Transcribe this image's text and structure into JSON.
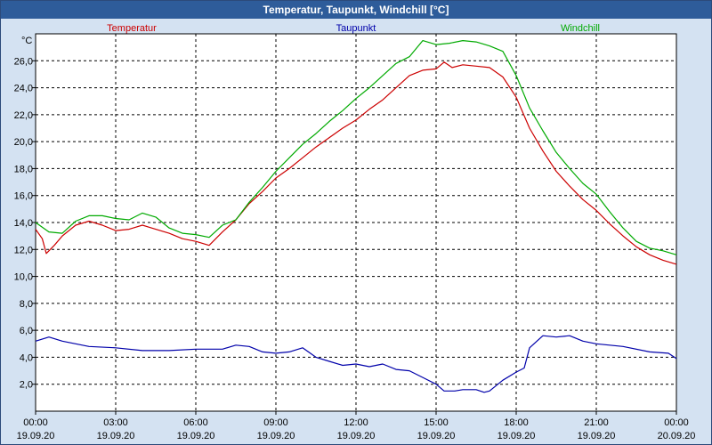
{
  "window": {
    "title": "Temperatur, Taupunkt, Windchill [°C]"
  },
  "chart_data": {
    "type": "line",
    "title": "Temperatur, Taupunkt, Windchill [°C]",
    "ylabel": "°C",
    "xlabel": "",
    "ylim": [
      0.0,
      28.0
    ],
    "xlim": [
      0,
      24
    ],
    "grid": true,
    "legend_placement": "top",
    "y_ticks": [
      "2,0",
      "4,0",
      "6,0",
      "8,0",
      "10,0",
      "12,0",
      "14,0",
      "16,0",
      "18,0",
      "20,0",
      "22,0",
      "24,0",
      "26,0"
    ],
    "x_ticks": [
      {
        "time": "00:00",
        "date": "19.09.20"
      },
      {
        "time": "03:00",
        "date": "19.09.20"
      },
      {
        "time": "06:00",
        "date": "19.09.20"
      },
      {
        "time": "09:00",
        "date": "19.09.20"
      },
      {
        "time": "12:00",
        "date": "19.09.20"
      },
      {
        "time": "15:00",
        "date": "19.09.20"
      },
      {
        "time": "18:00",
        "date": "19.09.20"
      },
      {
        "time": "21:00",
        "date": "19.09.20"
      },
      {
        "time": "00:00",
        "date": "20.09.20"
      }
    ],
    "series": [
      {
        "name": "Temperatur",
        "color": "#cc0000",
        "points": [
          [
            0,
            13.5
          ],
          [
            0.25,
            12.8
          ],
          [
            0.4,
            11.7
          ],
          [
            0.7,
            12.3
          ],
          [
            1,
            13.0
          ],
          [
            1.5,
            13.8
          ],
          [
            2,
            14.1
          ],
          [
            2.5,
            13.8
          ],
          [
            3,
            13.4
          ],
          [
            3.5,
            13.5
          ],
          [
            4,
            13.8
          ],
          [
            4.5,
            13.5
          ],
          [
            5,
            13.2
          ],
          [
            5.5,
            12.8
          ],
          [
            6,
            12.6
          ],
          [
            6.5,
            12.3
          ],
          [
            7,
            13.3
          ],
          [
            7.5,
            14.2
          ],
          [
            8,
            15.4
          ],
          [
            8.5,
            16.3
          ],
          [
            9,
            17.3
          ],
          [
            9.5,
            18.0
          ],
          [
            10,
            18.8
          ],
          [
            10.5,
            19.6
          ],
          [
            11,
            20.3
          ],
          [
            11.5,
            21.0
          ],
          [
            12,
            21.6
          ],
          [
            12.5,
            22.4
          ],
          [
            13,
            23.1
          ],
          [
            13.5,
            24.0
          ],
          [
            14,
            24.9
          ],
          [
            14.5,
            25.3
          ],
          [
            15,
            25.4
          ],
          [
            15.3,
            25.9
          ],
          [
            15.6,
            25.5
          ],
          [
            16,
            25.7
          ],
          [
            16.5,
            25.6
          ],
          [
            17,
            25.5
          ],
          [
            17.5,
            24.8
          ],
          [
            18,
            23.3
          ],
          [
            18.5,
            21.0
          ],
          [
            19,
            19.3
          ],
          [
            19.5,
            17.8
          ],
          [
            20,
            16.7
          ],
          [
            20.5,
            15.7
          ],
          [
            21,
            14.9
          ],
          [
            21.5,
            13.9
          ],
          [
            22,
            13.0
          ],
          [
            22.5,
            12.2
          ],
          [
            23,
            11.6
          ],
          [
            23.5,
            11.2
          ],
          [
            24,
            10.9
          ]
        ]
      },
      {
        "name": "Taupunkt",
        "color": "#0000aa",
        "points": [
          [
            0,
            5.2
          ],
          [
            0.5,
            5.5
          ],
          [
            1,
            5.2
          ],
          [
            2,
            4.8
          ],
          [
            3,
            4.7
          ],
          [
            4,
            4.5
          ],
          [
            5,
            4.5
          ],
          [
            6,
            4.6
          ],
          [
            7,
            4.6
          ],
          [
            7.5,
            4.9
          ],
          [
            8,
            4.8
          ],
          [
            8.5,
            4.4
          ],
          [
            9,
            4.3
          ],
          [
            9.5,
            4.4
          ],
          [
            10,
            4.7
          ],
          [
            10.5,
            4.0
          ],
          [
            11,
            3.7
          ],
          [
            11.5,
            3.4
          ],
          [
            12,
            3.5
          ],
          [
            12.5,
            3.3
          ],
          [
            13,
            3.5
          ],
          [
            13.5,
            3.1
          ],
          [
            14,
            3.0
          ],
          [
            14.5,
            2.5
          ],
          [
            15,
            2.0
          ],
          [
            15.3,
            1.5
          ],
          [
            15.7,
            1.5
          ],
          [
            16,
            1.6
          ],
          [
            16.5,
            1.6
          ],
          [
            16.8,
            1.4
          ],
          [
            17,
            1.5
          ],
          [
            17.5,
            2.3
          ],
          [
            18,
            2.9
          ],
          [
            18.3,
            3.2
          ],
          [
            18.5,
            4.7
          ],
          [
            19,
            5.6
          ],
          [
            19.5,
            5.5
          ],
          [
            20,
            5.6
          ],
          [
            20.5,
            5.2
          ],
          [
            21,
            5.0
          ],
          [
            22,
            4.8
          ],
          [
            23,
            4.4
          ],
          [
            23.7,
            4.3
          ],
          [
            24,
            3.9
          ]
        ]
      },
      {
        "name": "Windchill",
        "color": "#00aa00",
        "points": [
          [
            0,
            14.0
          ],
          [
            0.5,
            13.3
          ],
          [
            1,
            13.2
          ],
          [
            1.5,
            14.1
          ],
          [
            2,
            14.5
          ],
          [
            2.5,
            14.5
          ],
          [
            3,
            14.3
          ],
          [
            3.5,
            14.2
          ],
          [
            4,
            14.7
          ],
          [
            4.5,
            14.4
          ],
          [
            5,
            13.6
          ],
          [
            5.5,
            13.2
          ],
          [
            6,
            13.1
          ],
          [
            6.5,
            12.9
          ],
          [
            7,
            13.8
          ],
          [
            7.5,
            14.2
          ],
          [
            8,
            15.5
          ],
          [
            8.5,
            16.6
          ],
          [
            9,
            17.8
          ],
          [
            9.5,
            18.8
          ],
          [
            10,
            19.8
          ],
          [
            10.5,
            20.6
          ],
          [
            11,
            21.5
          ],
          [
            11.5,
            22.3
          ],
          [
            12,
            23.2
          ],
          [
            12.5,
            24.0
          ],
          [
            13,
            24.9
          ],
          [
            13.5,
            25.8
          ],
          [
            14,
            26.3
          ],
          [
            14.5,
            27.5
          ],
          [
            15,
            27.2
          ],
          [
            15.5,
            27.3
          ],
          [
            16,
            27.5
          ],
          [
            16.5,
            27.4
          ],
          [
            17,
            27.1
          ],
          [
            17.5,
            26.7
          ],
          [
            18,
            24.9
          ],
          [
            18.5,
            22.5
          ],
          [
            19,
            20.8
          ],
          [
            19.5,
            19.2
          ],
          [
            20,
            18.0
          ],
          [
            20.5,
            16.9
          ],
          [
            21,
            16.1
          ],
          [
            21.5,
            14.8
          ],
          [
            22,
            13.6
          ],
          [
            22.5,
            12.6
          ],
          [
            23,
            12.1
          ],
          [
            23.5,
            11.9
          ],
          [
            24,
            11.6
          ]
        ]
      }
    ]
  }
}
